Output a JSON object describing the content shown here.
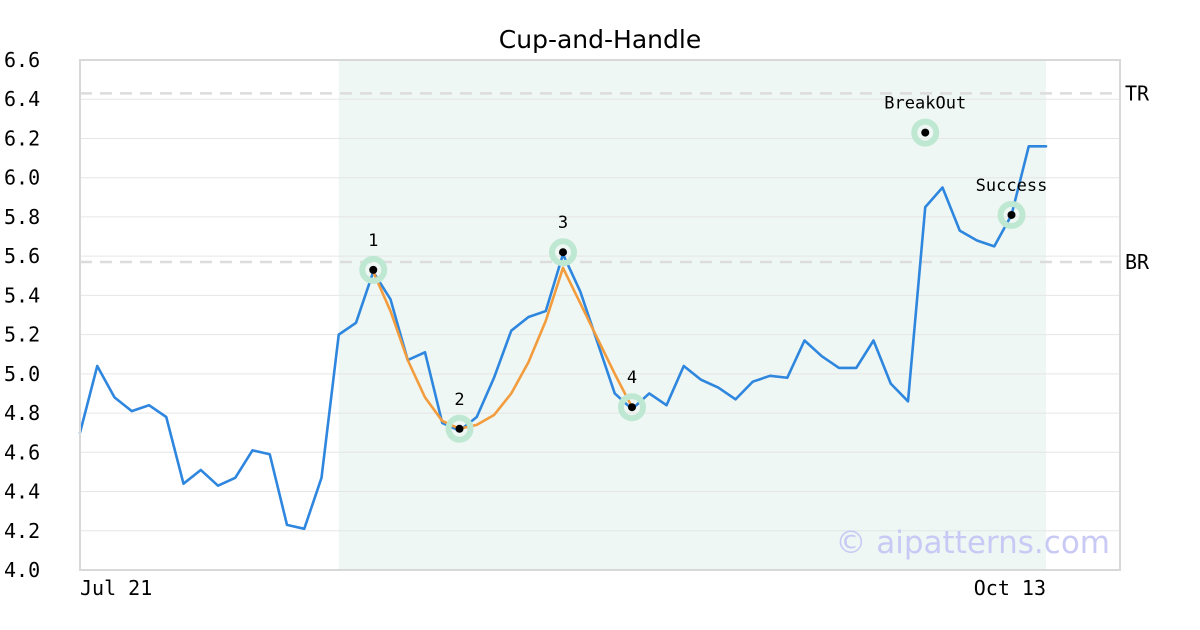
{
  "chart_data": {
    "type": "line",
    "title": "Cup-and-Handle",
    "watermark": "© aipatterns.com",
    "xlabel": "",
    "ylabel": "",
    "ylim": [
      4.0,
      6.6
    ],
    "yticks": [
      "4.0",
      "4.2",
      "4.4",
      "4.6",
      "4.8",
      "5.0",
      "5.2",
      "5.4",
      "5.6",
      "5.8",
      "6.0",
      "6.2",
      "6.4",
      "6.6"
    ],
    "xtick_labels": [
      {
        "index": 0,
        "label": "Jul 21"
      },
      {
        "index": 56,
        "label": "Oct 13"
      }
    ],
    "grid": "horizontal",
    "pattern_region": {
      "start_index": 15,
      "end_index": 56,
      "color": "#eef7f3"
    },
    "series": [
      {
        "color": "#2e86de",
        "values": [
          4.7,
          5.04,
          4.88,
          4.81,
          4.84,
          4.78,
          4.44,
          4.51,
          4.43,
          4.47,
          4.61,
          4.59,
          4.23,
          4.21,
          4.47,
          5.2,
          5.26,
          5.52,
          5.38,
          5.07,
          5.11,
          4.75,
          4.71,
          4.78,
          4.98,
          5.22,
          5.29,
          5.32,
          5.61,
          5.42,
          5.16,
          4.9,
          4.82,
          4.9,
          4.84,
          5.04,
          4.97,
          4.93,
          4.87,
          4.96,
          4.99,
          4.98,
          5.17,
          5.09,
          5.03,
          5.03,
          5.17,
          4.95,
          4.86,
          5.85,
          5.95,
          5.73,
          5.68,
          5.65,
          5.81,
          6.16,
          6.16
        ]
      },
      {
        "color": "#f39c3d",
        "x": [
          17,
          18,
          19,
          20,
          21,
          22,
          23,
          24,
          25,
          26,
          27,
          28,
          29,
          30,
          31,
          32
        ],
        "values": [
          5.52,
          5.32,
          5.07,
          4.88,
          4.76,
          4.72,
          4.74,
          4.79,
          4.9,
          5.06,
          5.27,
          5.54,
          5.36,
          5.18,
          5.0,
          4.83
        ]
      }
    ],
    "levels": [
      {
        "label": "TR",
        "value": 6.43
      },
      {
        "label": "BR",
        "value": 5.57
      }
    ],
    "points": [
      {
        "label": "1",
        "index": 17,
        "value": 5.53
      },
      {
        "label": "2",
        "index": 22,
        "value": 4.72
      },
      {
        "label": "3",
        "index": 28,
        "value": 5.62
      },
      {
        "label": "4",
        "index": 32,
        "value": 4.83
      },
      {
        "label": "BreakOut",
        "index": 49,
        "value": 6.23
      },
      {
        "label": "Success",
        "index": 54,
        "value": 5.81
      }
    ]
  }
}
